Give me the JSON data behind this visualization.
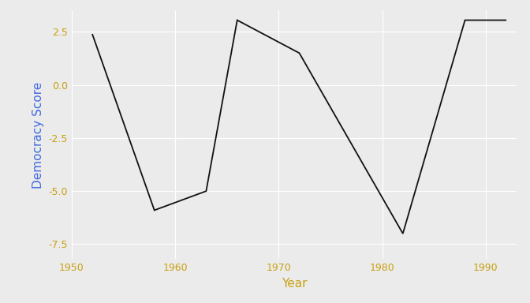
{
  "years": [
    1952,
    1958,
    1958,
    1963,
    1966,
    1972,
    1982,
    1982,
    1988,
    1992
  ],
  "scores": [
    2.4,
    -5.9,
    -5.9,
    -5.0,
    3.05,
    1.5,
    -7.0,
    -7.0,
    3.05,
    3.05
  ],
  "title": "",
  "xlabel": "Year",
  "ylabel": "Democracy Score",
  "xlim": [
    1950,
    1993
  ],
  "ylim": [
    -8.2,
    3.5
  ],
  "xticks": [
    1950,
    1960,
    1970,
    1980,
    1990
  ],
  "yticks": [
    -7.5,
    -5.0,
    -2.5,
    0.0,
    2.5
  ],
  "line_color": "#111111",
  "line_width": 1.3,
  "bg_color": "#EBEBEB",
  "panel_bg_color": "#EBEBEB",
  "grid_color": "#FFFFFF",
  "xlabel_color": "#C8A010",
  "ylabel_color": "#4169E1",
  "tick_label_color": "#C8A010",
  "tick_label_fontsize": 9,
  "axis_label_fontsize": 11
}
